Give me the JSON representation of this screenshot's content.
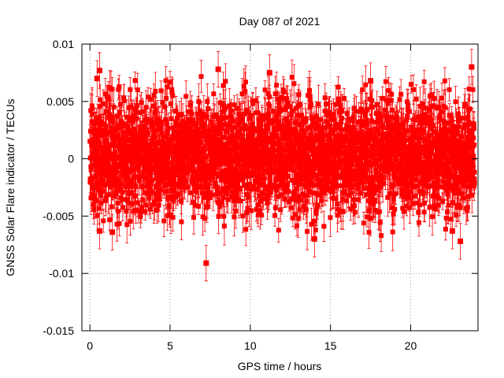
{
  "chart_data": {
    "type": "scatter",
    "title": "Day 087 of 2021",
    "xlabel": "GPS time / hours",
    "ylabel": "GNSS Solar Flare indicator / TECUs",
    "xlim": [
      -0.5,
      24.2
    ],
    "ylim": [
      -0.015,
      0.01
    ],
    "xticks": [
      0,
      5,
      10,
      15,
      20
    ],
    "xtick_labels": [
      "0",
      "5",
      "10",
      "15",
      "20"
    ],
    "yticks": [
      -0.015,
      -0.01,
      -0.005,
      0,
      0.005,
      0.01
    ],
    "ytick_labels": [
      "-0.015",
      "-0.01",
      "-0.005",
      "0",
      "0.005",
      "0.01"
    ],
    "grid": true,
    "series": [
      {
        "name": "GNSS Solar Flare indicator",
        "color": "#ff0000",
        "marker": "square",
        "error_bars": true,
        "n_points": 2880,
        "x_range_hours": [
          0,
          23.99
        ],
        "typical_band": [
          -0.006,
          0.0065
        ],
        "typical_error": 0.0012,
        "highlighted_points": [
          {
            "x": 0.6,
            "y": 0.0077
          },
          {
            "x": 0.45,
            "y": 0.007
          },
          {
            "x": 8.0,
            "y": 0.0078
          },
          {
            "x": 11.2,
            "y": 0.0075
          },
          {
            "x": 17.5,
            "y": 0.0068
          },
          {
            "x": 23.8,
            "y": 0.008
          },
          {
            "x": 7.25,
            "y": -0.0091
          },
          {
            "x": 23.1,
            "y": -0.0072
          },
          {
            "x": 0.6,
            "y": -0.0063
          },
          {
            "x": 1.4,
            "y": -0.0064
          },
          {
            "x": 14.0,
            "y": -0.007
          },
          {
            "x": 22.6,
            "y": -0.0063
          }
        ]
      }
    ]
  }
}
